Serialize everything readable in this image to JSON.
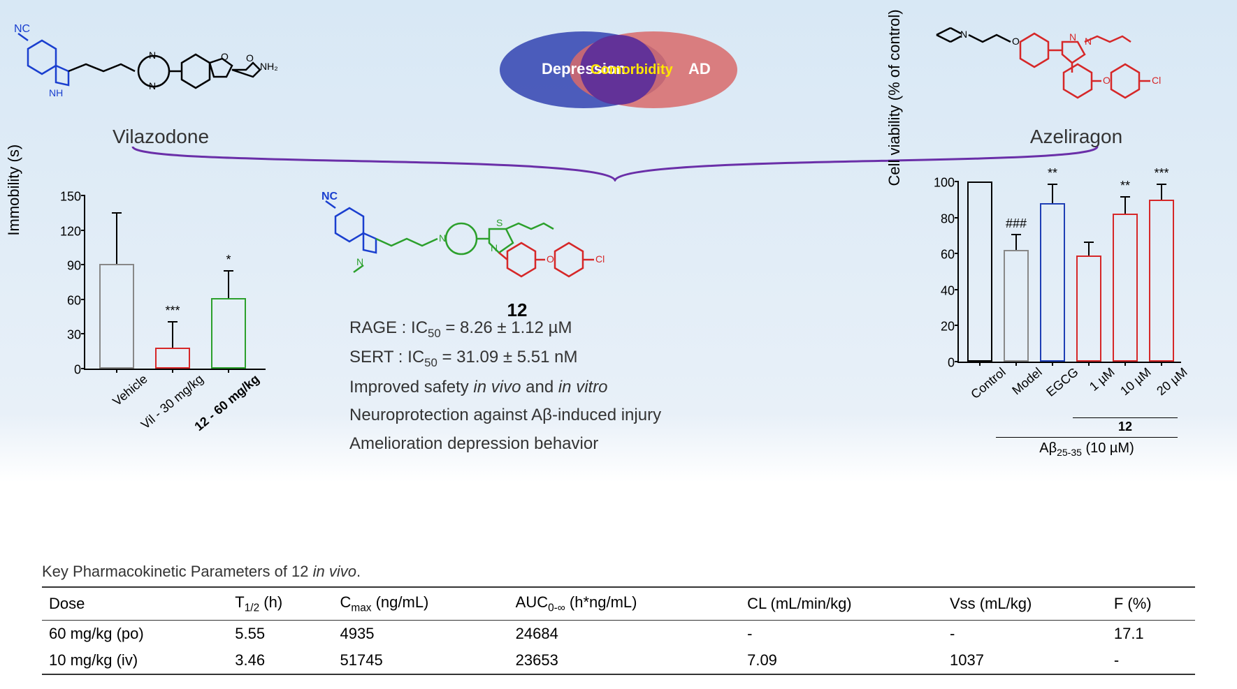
{
  "top": {
    "left_drug": "Vilazodone",
    "right_drug": "Azeliragon",
    "venn": {
      "left_label": "Depression",
      "center_label": "Comorbidity",
      "right_label": "AD",
      "left_color": "#3f4fb5",
      "right_color": "#d86a6a",
      "center_color": "#5d2f9a",
      "text_color": "#ffffff",
      "center_text_color": "#ffe600"
    }
  },
  "compound_label": "12",
  "summary": {
    "line1_prefix": "RAGE : IC",
    "line1_sub": "50",
    "line1_rest": " = 8.26 ± 1.12 µM",
    "line2_prefix": "SERT : IC",
    "line2_sub": "50",
    "line2_rest": " = 31.09 ± 5.51 nM",
    "line3_a": "Improved safety ",
    "line3_b": "in vivo",
    "line3_c": " and ",
    "line3_d": "in vitro",
    "line4": "Neuroprotection against Aβ-induced injury",
    "line5": "Amelioration depression behavior"
  },
  "chart_left": {
    "ylabel": "Immobility (s)",
    "ymax": 150,
    "ytick_step": 30,
    "bars": [
      {
        "label": "Vehicle",
        "value": 91,
        "err": 43,
        "color": "#888888",
        "sig": ""
      },
      {
        "label": "Vil - 30 mg/kg",
        "value": 18,
        "err": 22,
        "color": "#d62728",
        "sig": "***"
      },
      {
        "label": "12 - 60 mg/kg",
        "value": 61,
        "err": 23,
        "color": "#2ca02c",
        "sig": "*",
        "bold": true
      }
    ]
  },
  "chart_right": {
    "ylabel": "Cell viability (% of control)",
    "ymax": 100,
    "ytick_step": 20,
    "bars": [
      {
        "label": "Control",
        "value": 100,
        "err": 0,
        "color": "#000000",
        "sig": ""
      },
      {
        "label": "Model",
        "value": 62,
        "err": 8,
        "color": "#888888",
        "sig": "###"
      },
      {
        "label": "EGCG",
        "value": 88,
        "err": 10,
        "color": "#1f3fb5",
        "sig": "**"
      },
      {
        "label": "1 µM",
        "value": 59,
        "err": 7,
        "color": "#d62728",
        "sig": ""
      },
      {
        "label": "10 µM",
        "value": 82,
        "err": 9,
        "color": "#d62728",
        "sig": "**"
      },
      {
        "label": "20 µM",
        "value": 90,
        "err": 8,
        "color": "#d62728",
        "sig": "***"
      }
    ],
    "bracket_label": "12",
    "treatment_prefix": "Aβ",
    "treatment_sub": "25-35",
    "treatment_rest": " (10 µM)"
  },
  "table": {
    "title_a": "Key Pharmacokinetic Parameters of 12 ",
    "title_b": "in vivo",
    "title_c": ".",
    "columns": [
      "Dose",
      "T1/2 (h)",
      "Cmax (ng/mL)",
      "AUC0-∞ (h*ng/mL)",
      "CL (mL/min/kg)",
      "Vss (mL/kg)",
      "F (%)"
    ],
    "rows": [
      [
        "60 mg/kg (po)",
        "5.55",
        "4935",
        "24684",
        "-",
        "-",
        "17.1"
      ],
      [
        "10 mg/kg (iv)",
        "3.46",
        "51745",
        "23653",
        "7.09",
        "1037",
        "-"
      ]
    ]
  }
}
